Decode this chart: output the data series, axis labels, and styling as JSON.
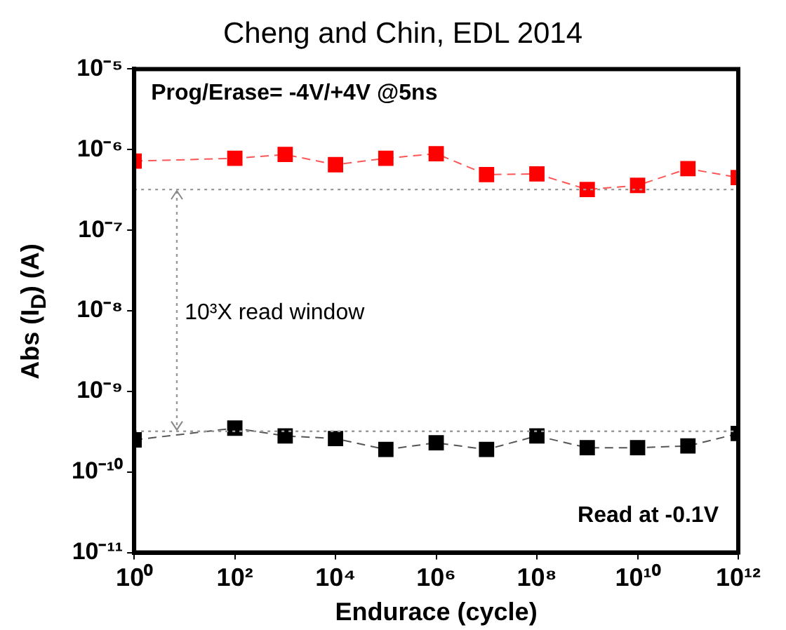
{
  "chart_data": {
    "type": "line",
    "title": "Cheng and Chin, EDL 2014",
    "xlabel": "Endurace (cycle)",
    "ylabel": "Abs (I$_{D}$) (A)",
    "x": [
      1,
      100,
      1000,
      10000,
      100000,
      1000000,
      10000000,
      100000000,
      1000000000,
      10000000000,
      100000000000,
      1000000000000
    ],
    "series": [
      {
        "color": "#ff0000",
        "values": [
          7.2e-07,
          7.8e-07,
          8.7e-07,
          6.5e-07,
          7.8e-07,
          8.9e-07,
          4.9e-07,
          5e-07,
          3.2e-07,
          3.6e-07,
          5.8e-07,
          4.5e-07
        ]
      },
      {
        "color": "#000000",
        "values": [
          2.5e-10,
          3.5e-10,
          2.8e-10,
          2.6e-10,
          1.9e-10,
          2.3e-10,
          1.9e-10,
          2.8e-10,
          2e-10,
          2e-10,
          2.1e-10,
          3e-10
        ]
      }
    ],
    "log": "xy",
    "xlim": [
      1,
      1000000000000
    ],
    "ylim": [
      1e-11,
      1e-05
    ],
    "xticks": [
      {
        "value": 1,
        "label": "10⁰"
      },
      {
        "value": 100,
        "label": "10²"
      },
      {
        "value": 10000,
        "label": "10⁴"
      },
      {
        "value": 1000000,
        "label": "10⁶"
      },
      {
        "value": 100000000,
        "label": "10⁸"
      },
      {
        "value": 10000000000,
        "label": "10¹⁰"
      },
      {
        "value": 1000000000000,
        "label": "10¹²"
      }
    ],
    "yticks": [
      {
        "value": 1e-11,
        "label": "10⁻¹¹"
      },
      {
        "value": 1e-10,
        "label": "10⁻¹⁰"
      },
      {
        "value": 1e-09,
        "label": "10⁻⁹"
      },
      {
        "value": 1e-08,
        "label": "10⁻⁸"
      },
      {
        "value": 1e-07,
        "label": "10⁻⁷"
      },
      {
        "value": 1e-06,
        "label": "10⁻⁶"
      },
      {
        "value": 1e-05,
        "label": "10⁻⁵"
      }
    ],
    "ref_lines": [
      {
        "axis": "y",
        "value": 3.2e-07,
        "color": "#999999",
        "line_style": "dotted"
      },
      {
        "axis": "y",
        "value": 3.2e-10,
        "color": "#999999",
        "line_style": "dotted"
      }
    ],
    "annotations": [
      "Prog/Erase= -4V/+4V @5ns",
      "10³X read window",
      "Read at -0.1V"
    ],
    "grid": false,
    "legend": false,
    "marker": "square",
    "line_style": "dashed"
  }
}
